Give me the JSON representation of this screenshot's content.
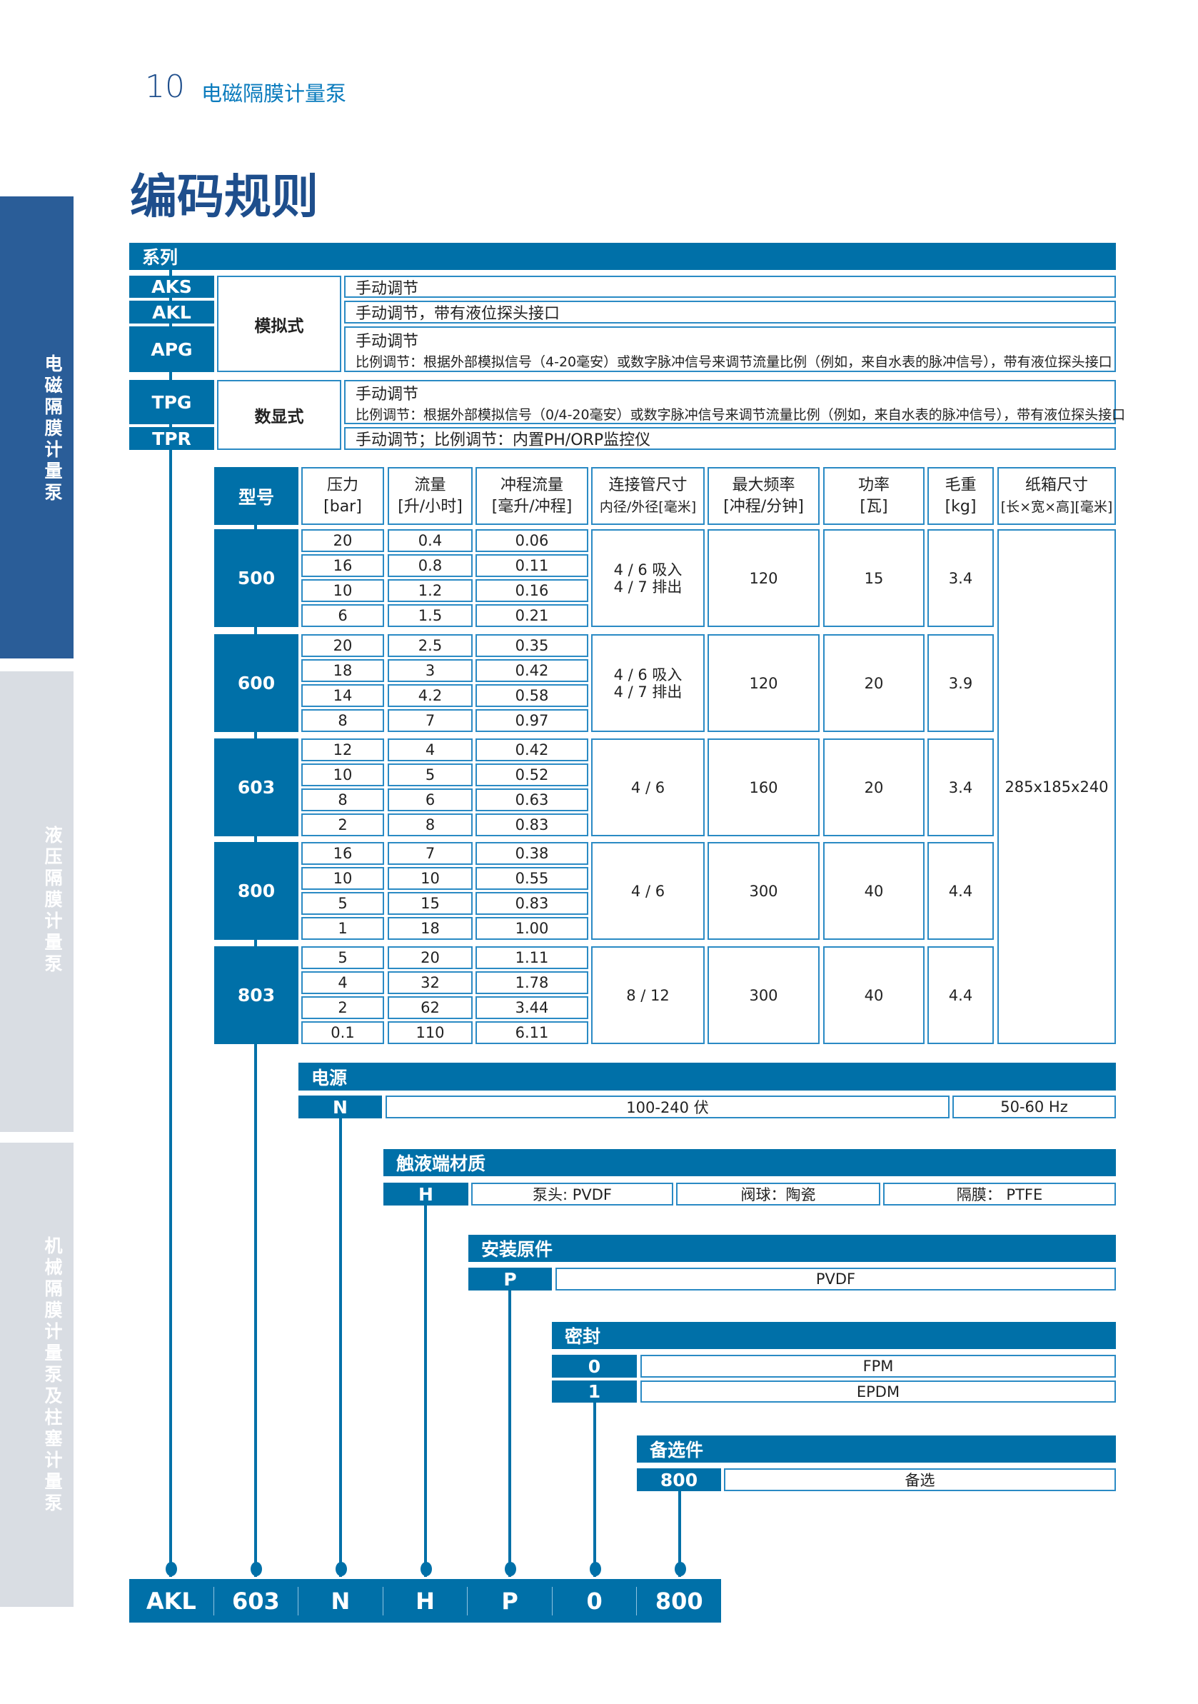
{
  "header": {
    "page_number": "10",
    "section": "电磁隔膜计量泵",
    "title": "编码规则"
  },
  "sidebar": [
    {
      "label": "电磁隔膜计量泵",
      "active": true
    },
    {
      "label": "液压隔膜计量泵",
      "active": false
    },
    {
      "label": "机械隔膜计量泵及柱塞计量泵",
      "active": false
    }
  ],
  "colors": {
    "accent": "#0070a8",
    "title": "#1e4e8c",
    "sidebar_active": "#2a5d98",
    "sidebar_inactive": "#d9dde3",
    "cell_border": "#2a8ac4"
  },
  "series": {
    "label": "系列",
    "codes": [
      "AKS",
      "AKL",
      "APG",
      "TPG",
      "TPR"
    ],
    "modes": [
      "模拟式",
      "数显式"
    ],
    "descriptions": {
      "aks": "手动调节",
      "akl": "手动调节，带有液位探头接口",
      "apg_1": "手动调节",
      "apg_2": "比例调节：根据外部模拟信号（4-20毫安）或数字脉冲信号来调节流量比例（例如，来自水表的脉冲信号），带有液位探头接口",
      "tpg_1": "手动调节",
      "tpg_2": "比例调节：根据外部模拟信号（0/4-20毫安）或数字脉冲信号来调节流量比例（例如，来自水表的脉冲信号），带有液位探头接口",
      "tpr": "手动调节；比例调节：内置PH/ORP监控仪"
    }
  },
  "model_table": {
    "headers": [
      {
        "l1": "型号",
        "l2": ""
      },
      {
        "l1": "压力",
        "l2": "[bar]"
      },
      {
        "l1": "流量",
        "l2": "[升/小时]"
      },
      {
        "l1": "冲程流量",
        "l2": "[毫升/冲程]"
      },
      {
        "l1": "连接管尺寸",
        "l2": "内径/外径[毫米]"
      },
      {
        "l1": "最大频率",
        "l2": "[冲程/分钟]"
      },
      {
        "l1": "功率",
        "l2": "[瓦]"
      },
      {
        "l1": "毛重",
        "l2": "[kg]"
      },
      {
        "l1": "纸箱尺寸",
        "l2": "[长×宽×高][毫米]"
      }
    ],
    "carton": "285x185x240",
    "models": [
      {
        "model": "500",
        "rows": [
          [
            "20",
            "0.4",
            "0.06"
          ],
          [
            "16",
            "0.8",
            "0.11"
          ],
          [
            "10",
            "1.2",
            "0.16"
          ],
          [
            "6",
            "1.5",
            "0.21"
          ]
        ],
        "connection": "4 / 6 吸入\n4 / 7 排出",
        "freq": "120",
        "power": "15",
        "weight": "3.4"
      },
      {
        "model": "600",
        "rows": [
          [
            "20",
            "2.5",
            "0.35"
          ],
          [
            "18",
            "3",
            "0.42"
          ],
          [
            "14",
            "4.2",
            "0.58"
          ],
          [
            "8",
            "7",
            "0.97"
          ]
        ],
        "connection": "4 / 6 吸入\n4 / 7 排出",
        "freq": "120",
        "power": "20",
        "weight": "3.9"
      },
      {
        "model": "603",
        "rows": [
          [
            "12",
            "4",
            "0.42"
          ],
          [
            "10",
            "5",
            "0.52"
          ],
          [
            "8",
            "6",
            "0.63"
          ],
          [
            "2",
            "8",
            "0.83"
          ]
        ],
        "connection": "4 / 6",
        "freq": "160",
        "power": "20",
        "weight": "3.4"
      },
      {
        "model": "800",
        "rows": [
          [
            "16",
            "7",
            "0.38"
          ],
          [
            "10",
            "10",
            "0.55"
          ],
          [
            "5",
            "15",
            "0.83"
          ],
          [
            "1",
            "18",
            "1.00"
          ]
        ],
        "connection": "4 / 6",
        "freq": "300",
        "power": "40",
        "weight": "4.4"
      },
      {
        "model": "803",
        "rows": [
          [
            "5",
            "20",
            "1.11"
          ],
          [
            "4",
            "32",
            "1.78"
          ],
          [
            "2",
            "62",
            "3.44"
          ],
          [
            "0.1",
            "110",
            "6.11"
          ]
        ],
        "connection": "8 / 12",
        "freq": "300",
        "power": "40",
        "weight": "4.4"
      }
    ]
  },
  "power": {
    "label": "电源",
    "code": "N",
    "voltage": "100-240 伏",
    "frequency": "50-60 Hz"
  },
  "wetted": {
    "label": "触液端材质",
    "code": "H",
    "head": "泵头: PVDF",
    "ball": "阀球：陶瓷",
    "diaphragm": "隔膜：  PTFE"
  },
  "fitting": {
    "label": "安装原件",
    "code": "P",
    "value": "PVDF"
  },
  "seal": {
    "label": "密封",
    "options": [
      {
        "code": "0",
        "value": "FPM"
      },
      {
        "code": "1",
        "value": "EPDM"
      }
    ]
  },
  "optional": {
    "label": "备选件",
    "code": "800",
    "value": "备选"
  },
  "example_code": [
    "AKL",
    "603",
    "N",
    "H",
    "P",
    "0",
    "800"
  ]
}
